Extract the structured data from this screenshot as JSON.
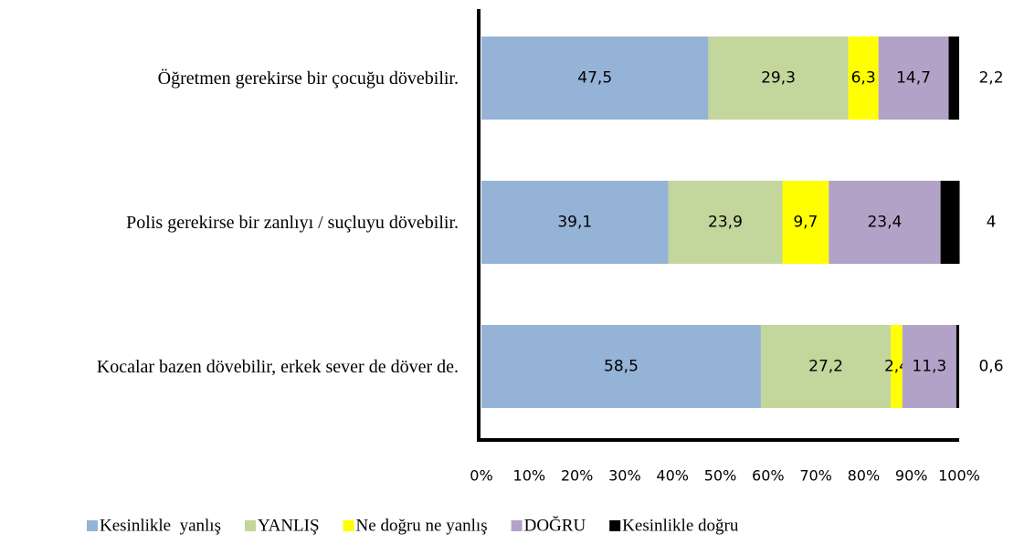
{
  "chart_data": {
    "type": "stacked_bar_horizontal",
    "categories": [
      "Öğretmen gerekirse bir çocuğu dövebilir.",
      "Polis gerekirse bir zanlıyı / suçluyu dövebilir.",
      "Kocalar bazen dövebilir, erkek sever de döver de."
    ],
    "series": [
      {
        "name": "Kesinlikle  yanlış",
        "color": "#95b3d7",
        "values": [
          47.5,
          39.1,
          58.5
        ],
        "value_labels": [
          "47,5",
          "39,1",
          "58,5"
        ]
      },
      {
        "name": "YANLIŞ",
        "color": "#c3d69b",
        "values": [
          29.3,
          23.9,
          27.2
        ],
        "value_labels": [
          "29,3",
          "23,9",
          "27,2"
        ]
      },
      {
        "name": "Ne doğru ne yanlış",
        "color": "#ffff00",
        "values": [
          6.3,
          9.7,
          2.4
        ],
        "value_labels": [
          "6,3",
          "9,7",
          "2,4"
        ]
      },
      {
        "name": "DOĞRU",
        "color": "#b3a2c7",
        "values": [
          14.7,
          23.4,
          11.3
        ],
        "value_labels": [
          "14,7",
          "23,4",
          "11,3"
        ]
      },
      {
        "name": "Kesinlikle doğru",
        "color": "#000000",
        "values": [
          2.2,
          4,
          0.6
        ],
        "value_labels": [
          "2,2",
          "4",
          "0,6"
        ]
      }
    ],
    "xlim": [
      0,
      100
    ],
    "xticks": [
      {
        "value": 0,
        "label": "0%"
      },
      {
        "value": 10,
        "label": "10%"
      },
      {
        "value": 20,
        "label": "20%"
      },
      {
        "value": 30,
        "label": "30%"
      },
      {
        "value": 40,
        "label": "40%"
      },
      {
        "value": 50,
        "label": "50%"
      },
      {
        "value": 60,
        "label": "60%"
      },
      {
        "value": 70,
        "label": "70%"
      },
      {
        "value": 80,
        "label": "80%"
      },
      {
        "value": 90,
        "label": "90%"
      },
      {
        "value": 100,
        "label": "100%"
      }
    ],
    "legend": "bottom"
  }
}
